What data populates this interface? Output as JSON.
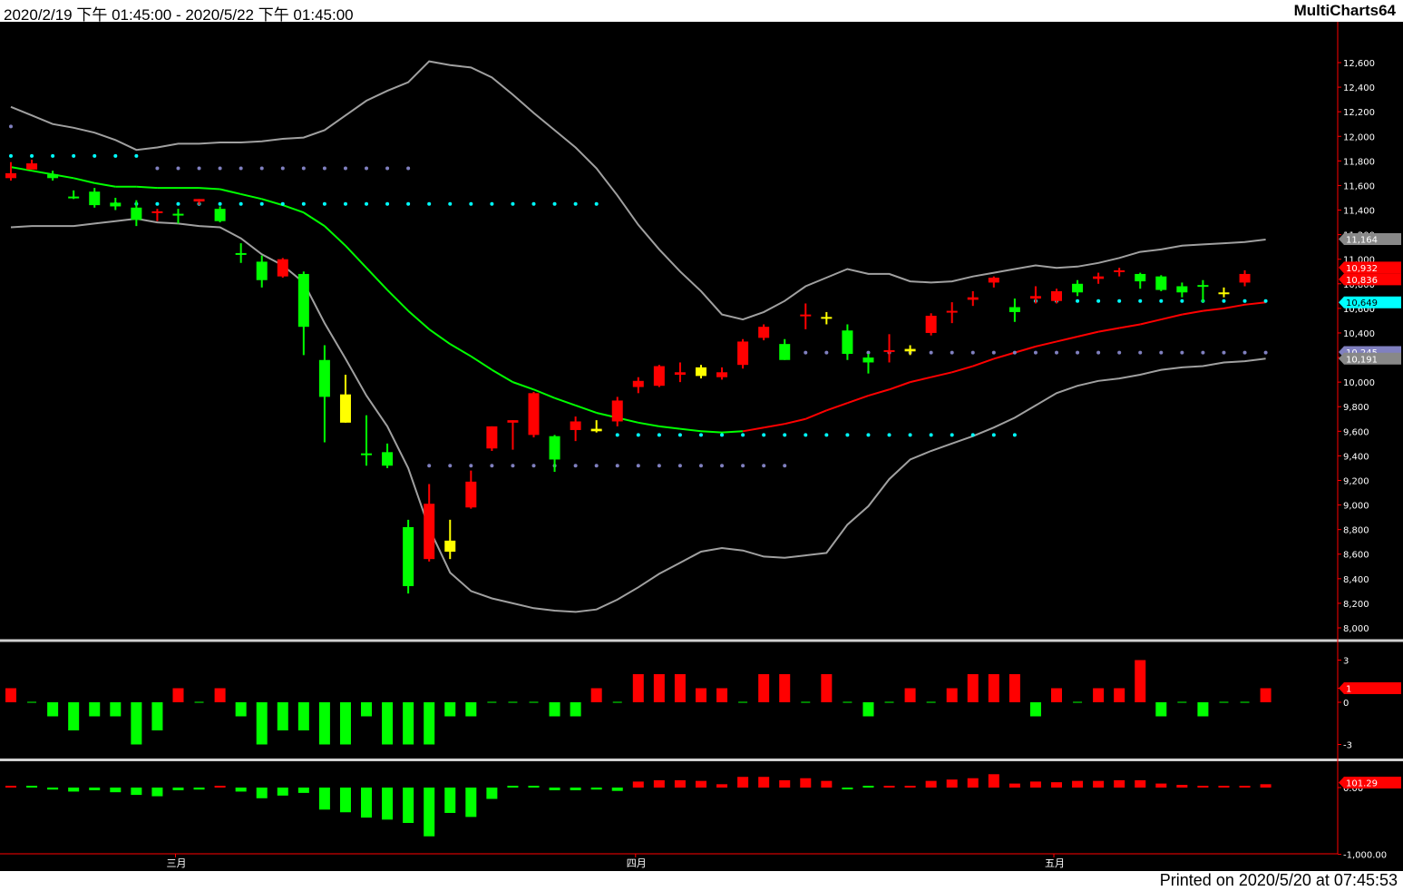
{
  "header": {
    "date_range": "2020/2/19 下午 01:45:00 - 2020/5/22 下午 01:45:00",
    "app_name": "MultiCharts64"
  },
  "footer": {
    "printed": "Printed on 2020/5/20 at 07:45:53"
  },
  "colors": {
    "background": "#000000",
    "up": "#ff0000",
    "down": "#00ff00",
    "neutral": "#ffff00",
    "band": "#a0a0a0",
    "ma_down": "#00ff00",
    "ma_up": "#ff0000",
    "dot_support": "#00ffff",
    "dot_resist": "#8080c0"
  },
  "chart_data": [
    {
      "type": "candlestick",
      "x_labels": [
        "三月",
        "四月",
        "五月"
      ],
      "x_label_index": [
        8,
        30,
        50
      ],
      "ylim": [
        7900,
        12900
      ],
      "y_ticks": [
        8000,
        8200,
        8400,
        8600,
        8800,
        9000,
        9200,
        9400,
        9600,
        9800,
        10000,
        10200,
        10400,
        10600,
        10800,
        11000,
        11200,
        11400,
        11600,
        11800,
        12000,
        12200,
        12400,
        12600
      ],
      "y_tick_labels": [
        "8,000",
        "8,200",
        "8,400",
        "8,600",
        "8,800",
        "9,000",
        "9,200",
        "9,400",
        "9,600",
        "9,800",
        "10,000",
        "10,200",
        "10,400",
        "10,600",
        "10,800",
        "11,000",
        "11,200",
        "11,400",
        "11,600",
        "11,800",
        "12,000",
        "12,200",
        "12,400",
        "12,600"
      ],
      "candles": [
        {
          "o": 11700,
          "h": 11790,
          "l": 11640,
          "c": 11660
        },
        {
          "o": 11780,
          "h": 11810,
          "l": 11740,
          "c": 11730
        },
        {
          "o": 11690,
          "h": 11720,
          "l": 11640,
          "c": 11660
        },
        {
          "o": 11510,
          "h": 11560,
          "l": 11490,
          "c": 11510
        },
        {
          "o": 11550,
          "h": 11580,
          "l": 11420,
          "c": 11440
        },
        {
          "o": 11460,
          "h": 11500,
          "l": 11400,
          "c": 11430
        },
        {
          "o": 11420,
          "h": 11480,
          "l": 11270,
          "c": 11320
        },
        {
          "o": 11380,
          "h": 11410,
          "l": 11310,
          "c": 11390
        },
        {
          "o": 11370,
          "h": 11410,
          "l": 11290,
          "c": 11370
        },
        {
          "o": 11470,
          "h": 11490,
          "l": 11440,
          "c": 11490
        },
        {
          "o": 11410,
          "h": 11430,
          "l": 11300,
          "c": 11310
        },
        {
          "o": 11050,
          "h": 11130,
          "l": 10970,
          "c": 11040
        },
        {
          "o": 10980,
          "h": 11030,
          "l": 10770,
          "c": 10830
        },
        {
          "o": 10860,
          "h": 11010,
          "l": 10850,
          "c": 11000
        },
        {
          "o": 10880,
          "h": 10900,
          "l": 10220,
          "c": 10450
        },
        {
          "o": 10180,
          "h": 10300,
          "l": 9510,
          "c": 9880
        },
        {
          "o": 9900,
          "h": 10060,
          "l": 9670,
          "c": 9670
        },
        {
          "o": 9410,
          "h": 9730,
          "l": 9320,
          "c": 9420
        },
        {
          "o": 9430,
          "h": 9500,
          "l": 9300,
          "c": 9320
        },
        {
          "o": 8820,
          "h": 8880,
          "l": 8280,
          "c": 8340
        },
        {
          "o": 8560,
          "h": 9170,
          "l": 8540,
          "c": 9010
        },
        {
          "o": 8710,
          "h": 8880,
          "l": 8560,
          "c": 8620
        },
        {
          "o": 8980,
          "h": 9280,
          "l": 8970,
          "c": 9190
        },
        {
          "o": 9460,
          "h": 9640,
          "l": 9440,
          "c": 9640
        },
        {
          "o": 9670,
          "h": 9690,
          "l": 9450,
          "c": 9690
        },
        {
          "o": 9570,
          "h": 9920,
          "l": 9550,
          "c": 9910
        },
        {
          "o": 9560,
          "h": 9570,
          "l": 9270,
          "c": 9370
        },
        {
          "o": 9610,
          "h": 9720,
          "l": 9520,
          "c": 9680
        },
        {
          "o": 9600,
          "h": 9690,
          "l": 9590,
          "c": 9620
        },
        {
          "o": 9680,
          "h": 9880,
          "l": 9640,
          "c": 9850
        },
        {
          "o": 9960,
          "h": 10040,
          "l": 9910,
          "c": 10010
        },
        {
          "o": 9970,
          "h": 10140,
          "l": 9960,
          "c": 10130
        },
        {
          "o": 10060,
          "h": 10160,
          "l": 10000,
          "c": 10080
        },
        {
          "o": 10120,
          "h": 10140,
          "l": 10030,
          "c": 10050
        },
        {
          "o": 10040,
          "h": 10120,
          "l": 10020,
          "c": 10080
        },
        {
          "o": 10140,
          "h": 10350,
          "l": 10110,
          "c": 10330
        },
        {
          "o": 10360,
          "h": 10470,
          "l": 10340,
          "c": 10450
        },
        {
          "o": 10310,
          "h": 10350,
          "l": 10180,
          "c": 10180
        },
        {
          "o": 10550,
          "h": 10640,
          "l": 10430,
          "c": 10550
        },
        {
          "o": 10530,
          "h": 10570,
          "l": 10470,
          "c": 10530
        },
        {
          "o": 10420,
          "h": 10470,
          "l": 10180,
          "c": 10230
        },
        {
          "o": 10200,
          "h": 10230,
          "l": 10070,
          "c": 10160
        },
        {
          "o": 10260,
          "h": 10390,
          "l": 10160,
          "c": 10260
        },
        {
          "o": 10270,
          "h": 10300,
          "l": 10220,
          "c": 10250
        },
        {
          "o": 10400,
          "h": 10560,
          "l": 10380,
          "c": 10540
        },
        {
          "o": 10580,
          "h": 10650,
          "l": 10480,
          "c": 10580
        },
        {
          "o": 10670,
          "h": 10740,
          "l": 10620,
          "c": 10690
        },
        {
          "o": 10810,
          "h": 10860,
          "l": 10770,
          "c": 10850
        },
        {
          "o": 10570,
          "h": 10680,
          "l": 10490,
          "c": 10610
        },
        {
          "o": 10680,
          "h": 10780,
          "l": 10640,
          "c": 10700
        },
        {
          "o": 10740,
          "h": 10760,
          "l": 10640,
          "c": 10660
        },
        {
          "o": 10730,
          "h": 10830,
          "l": 10700,
          "c": 10800
        },
        {
          "o": 10840,
          "h": 10890,
          "l": 10800,
          "c": 10860
        },
        {
          "o": 10910,
          "h": 10930,
          "l": 10860,
          "c": 10900
        },
        {
          "o": 10880,
          "h": 10890,
          "l": 10760,
          "c": 10820
        },
        {
          "o": 10860,
          "h": 10870,
          "l": 10740,
          "c": 10750
        },
        {
          "o": 10780,
          "h": 10810,
          "l": 10690,
          "c": 10730
        },
        {
          "o": 10780,
          "h": 10830,
          "l": 10650,
          "c": 10790
        },
        {
          "o": 10730,
          "h": 10770,
          "l": 10690,
          "c": 10730
        },
        {
          "o": 10810,
          "h": 10910,
          "l": 10780,
          "c": 10880
        }
      ],
      "candle_colors": [
        "up",
        "up",
        "down",
        "down",
        "down",
        "down",
        "down",
        "up",
        "down",
        "up",
        "down",
        "down",
        "down",
        "up",
        "down",
        "down",
        "neutral",
        "down",
        "down",
        "down",
        "up",
        "neutral",
        "up",
        "up",
        "up",
        "up",
        "down",
        "up",
        "neutral",
        "up",
        "up",
        "up",
        "up",
        "neutral",
        "up",
        "up",
        "up",
        "down",
        "up",
        "neutral",
        "down",
        "down",
        "up",
        "neutral",
        "up",
        "up",
        "up",
        "up",
        "down",
        "up",
        "up",
        "down",
        "up",
        "up",
        "down",
        "down",
        "down",
        "down",
        "neutral",
        "up"
      ],
      "upper_band": [
        12240,
        12170,
        12100,
        12070,
        12030,
        11970,
        11890,
        11910,
        11940,
        11940,
        11950,
        11950,
        11960,
        11980,
        11990,
        12050,
        12170,
        12290,
        12370,
        12440,
        12610,
        12580,
        12560,
        12480,
        12340,
        12190,
        12050,
        11910,
        11740,
        11520,
        11280,
        11080,
        10900,
        10740,
        10550,
        10510,
        10570,
        10660,
        10780,
        10850,
        10920,
        10880,
        10880,
        10820,
        10810,
        10820,
        10860,
        10890,
        10920,
        10950,
        10930,
        10940,
        10970,
        11010,
        11060,
        11080,
        11110,
        11120,
        11130,
        11140,
        11160
      ],
      "lower_band": [
        11260,
        11270,
        11270,
        11270,
        11290,
        11310,
        11330,
        11300,
        11290,
        11270,
        11260,
        11170,
        11040,
        10950,
        10810,
        10480,
        10190,
        9890,
        9640,
        9300,
        8810,
        8450,
        8300,
        8240,
        8200,
        8160,
        8140,
        8130,
        8150,
        8230,
        8330,
        8440,
        8530,
        8620,
        8650,
        8630,
        8580,
        8570,
        8590,
        8610,
        8840,
        8990,
        9210,
        9370,
        9440,
        9500,
        9560,
        9630,
        9710,
        9810,
        9910,
        9970,
        10010,
        10030,
        10060,
        10100,
        10120,
        10130,
        10160,
        10170,
        10191
      ],
      "ma_line": [
        11750,
        11720,
        11690,
        11660,
        11620,
        11590,
        11590,
        11580,
        11580,
        11580,
        11570,
        11530,
        11490,
        11440,
        11380,
        11270,
        11110,
        10930,
        10750,
        10580,
        10430,
        10310,
        10210,
        10100,
        10000,
        9940,
        9870,
        9810,
        9750,
        9710,
        9670,
        9640,
        9620,
        9600,
        9590,
        9600,
        9630,
        9660,
        9700,
        9770,
        9830,
        9890,
        9940,
        10000,
        10040,
        10080,
        10130,
        10190,
        10240,
        10290,
        10330,
        10370,
        10410,
        10440,
        10470,
        10510,
        10550,
        10580,
        10600,
        10630,
        10649
      ],
      "ma_trend": [
        "down",
        "down",
        "down",
        "down",
        "down",
        "down",
        "down",
        "down",
        "down",
        "down",
        "down",
        "down",
        "down",
        "down",
        "down",
        "down",
        "down",
        "down",
        "down",
        "down",
        "down",
        "down",
        "down",
        "down",
        "down",
        "down",
        "down",
        "down",
        "down",
        "down",
        "down",
        "down",
        "down",
        "down",
        "down",
        "down",
        "up",
        "up",
        "up",
        "up",
        "up",
        "up",
        "up",
        "up",
        "up",
        "up",
        "up",
        "up",
        "up",
        "up",
        "up",
        "up",
        "up",
        "up",
        "up",
        "up",
        "up",
        "up",
        "up",
        "up",
        "up"
      ],
      "dot_lines": [
        {
          "color": "support",
          "value": 11840,
          "from": 0,
          "to": 6
        },
        {
          "color": "resist",
          "value": 11740,
          "from": 7,
          "to": 19
        },
        {
          "color": "support",
          "value": 11450,
          "from": 5,
          "to": 28
        },
        {
          "color": "resist",
          "value": 9320,
          "from": 20,
          "to": 37
        },
        {
          "color": "support",
          "value": 9570,
          "from": 29,
          "to": 48
        },
        {
          "color": "resist",
          "value": 10240,
          "from": 38,
          "to": 60
        },
        {
          "color": "support",
          "value": 10660,
          "from": 49,
          "to": 60
        },
        {
          "color": "resist",
          "value": 12080,
          "from": 0,
          "to": 0
        }
      ],
      "price_badges": [
        {
          "text": "11,164",
          "value": 11164,
          "color": "#888888"
        },
        {
          "text": "10,932",
          "value": 10932,
          "color": "#ff0000"
        },
        {
          "text": "10,836",
          "value": 10836,
          "color": "#ff0000"
        },
        {
          "text": "10,649",
          "value": 10649,
          "color": "#00ffff"
        },
        {
          "text": "10,245",
          "value": 10245,
          "color": "#8080c0"
        },
        {
          "text": "10,191",
          "value": 10191,
          "color": "#888888"
        }
      ]
    },
    {
      "type": "bar",
      "ylim": [
        -3.6,
        3.6
      ],
      "y_ticks": [
        -3,
        0,
        1,
        3
      ],
      "y_tick_labels": [
        "-3",
        "0",
        "",
        "3"
      ],
      "badge": {
        "text": "1",
        "value": 1,
        "color": "#ff0000"
      },
      "values": [
        1,
        0,
        -1,
        -2,
        -1,
        -1,
        -3,
        -2,
        1,
        0,
        1,
        -1,
        -3,
        -2,
        -2,
        -3,
        -3,
        -1,
        -3,
        -3,
        -3,
        -1,
        -1,
        0,
        0,
        0,
        -1,
        -1,
        1,
        0,
        2,
        2,
        2,
        1,
        1,
        0,
        2,
        2,
        0,
        2,
        0,
        -1,
        0,
        1,
        0,
        1,
        2,
        2,
        2,
        -1,
        1,
        0,
        1,
        1,
        3,
        -1,
        0,
        -1,
        0,
        0,
        1
      ]
    },
    {
      "type": "bar",
      "ylim": [
        -1300,
        180
      ],
      "y_ticks": [
        0,
        -1000
      ],
      "y_tick_labels": [
        "0.00",
        "-1,000.00"
      ],
      "badge": {
        "text": "101.29",
        "value": 101.29,
        "color": "#ff0000"
      },
      "values": [
        10,
        0,
        -30,
        -60,
        -40,
        -70,
        -110,
        -130,
        -40,
        -30,
        15,
        -60,
        -160,
        -120,
        -80,
        -330,
        -370,
        -450,
        -480,
        -530,
        -730,
        -380,
        -440,
        -170,
        0,
        0,
        -40,
        -40,
        -30,
        -50,
        90,
        110,
        110,
        100,
        50,
        160,
        160,
        110,
        140,
        100,
        -10,
        0,
        20,
        20,
        100,
        120,
        140,
        200,
        60,
        90,
        80,
        100,
        100,
        110,
        110,
        60,
        40,
        10,
        20,
        20,
        50
      ]
    }
  ]
}
